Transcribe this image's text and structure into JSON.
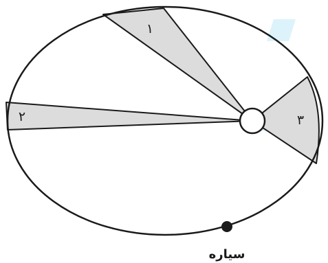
{
  "diagram": {
    "regions": [
      {
        "label": "۱"
      },
      {
        "label": "۲"
      },
      {
        "label": "۳"
      }
    ],
    "planet_label": "سیاره",
    "colors": {
      "region_fill": "#dcdcdc",
      "stroke": "#1a1a1a",
      "sun_fill": "#ffffff",
      "planet_fill": "#1a1a1a"
    }
  }
}
